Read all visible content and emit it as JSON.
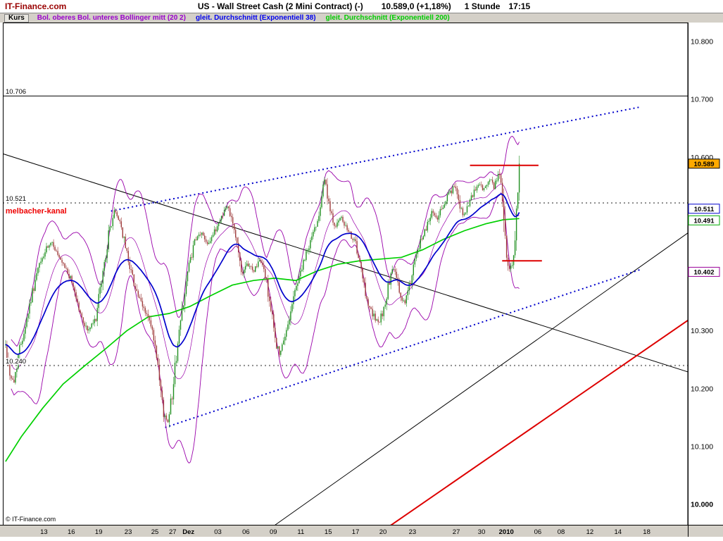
{
  "header": {
    "brand": "IT-Finance.com",
    "instrument": "US - Wall Street Cash (2 Mini Contract) (-)",
    "quote": "10.589,0 (+1,18%)",
    "timeframe": "1 Stunde",
    "time": "17:15"
  },
  "legend": {
    "kurs_label": "Kurs",
    "items": [
      {
        "key": "bollinger",
        "label": "Bol. oberes Bol. unteres Bollinger mitt (20 2)",
        "color": "#9900cc"
      },
      {
        "key": "ema38",
        "label": "gleit. Durchschnitt (Exponentiell 38)",
        "color": "#0000ee"
      },
      {
        "key": "ema200",
        "label": "gleit. Durchschnitt (Exponentiell 200)",
        "color": "#00cc00"
      }
    ]
  },
  "chart_data": {
    "type": "candlestick",
    "title": "US - Wall Street Cash (2 Mini Contract)",
    "timeframe": "1 Stunde",
    "last_price": 10.589,
    "change_pct": "+1,18%",
    "ylim": [
      9.96,
      10.835
    ],
    "grid": false,
    "copyright": "© IT-Finance.com",
    "indicators": {
      "bollinger_period": 20,
      "bollinger_dev": 2,
      "ema_periods": [
        38,
        200
      ]
    },
    "series_colors": {
      "up": "#1f8f1f",
      "down": "#9e3a3a",
      "bollinger": "#9900aa",
      "ema38": "#0000cc",
      "ema200": "#00d000"
    },
    "y_axis_labels": [
      {
        "t": "10.800",
        "p": 10.8
      },
      {
        "t": "10.700",
        "p": 10.7
      },
      {
        "t": "10.600",
        "p": 10.6
      },
      {
        "t": "10.300",
        "p": 10.3
      },
      {
        "t": "10.200",
        "p": 10.2
      },
      {
        "t": "10.100",
        "p": 10.1
      },
      {
        "t": "10.000",
        "p": 10.0,
        "b": true
      }
    ],
    "axis_markers": [
      {
        "t": "10.589",
        "p": 10.589,
        "bg": "#ffaa00",
        "border": "#000000"
      },
      {
        "t": "10.511",
        "p": 10.511,
        "bg": "#ffffff",
        "border": "#0000cc"
      },
      {
        "t": "10.491",
        "p": 10.491,
        "bg": "#ffffff",
        "border": "#00aa00"
      },
      {
        "t": "10.402",
        "p": 10.402,
        "bg": "#ffffff",
        "border": "#990099"
      }
    ],
    "x_axis_labels": [
      {
        "t": "13",
        "u": 0.06
      },
      {
        "t": "16",
        "u": 0.1
      },
      {
        "t": "19",
        "u": 0.14
      },
      {
        "t": "23",
        "u": 0.183
      },
      {
        "t": "25",
        "u": 0.222
      },
      {
        "t": "27",
        "u": 0.248
      },
      {
        "t": "Dez",
        "u": 0.271,
        "b": true
      },
      {
        "t": "03",
        "u": 0.314
      },
      {
        "t": "06",
        "u": 0.355
      },
      {
        "t": "09",
        "u": 0.395
      },
      {
        "t": "11",
        "u": 0.435
      },
      {
        "t": "15",
        "u": 0.475
      },
      {
        "t": "17",
        "u": 0.515
      },
      {
        "t": "20",
        "u": 0.555
      },
      {
        "t": "23",
        "u": 0.598
      },
      {
        "t": "27",
        "u": 0.662
      },
      {
        "t": "30",
        "u": 0.699
      },
      {
        "t": "2010",
        "u": 0.735,
        "b": true
      },
      {
        "t": "06",
        "u": 0.781
      },
      {
        "t": "08",
        "u": 0.815
      },
      {
        "t": "12",
        "u": 0.857
      },
      {
        "t": "14",
        "u": 0.898
      },
      {
        "t": "18",
        "u": 0.94
      }
    ],
    "levels": [
      {
        "p": 10.706,
        "style": "solid",
        "color": "#000000",
        "w": 1,
        "label": "10.706"
      },
      {
        "p": 10.521,
        "style": "dot",
        "color": "#8c8c8c",
        "w": 2,
        "label": "10.521"
      },
      {
        "p": 10.24,
        "style": "dot",
        "color": "#8c8c8c",
        "w": 2,
        "label": "10.240"
      }
    ],
    "trend_lines": [
      {
        "name": "descending-trendline",
        "u1": 0,
        "p1": 10.606,
        "u2": 1,
        "p2": 10.229,
        "color": "#000000",
        "w": 1,
        "style": "solid"
      },
      {
        "name": "ascending-trendline",
        "u1": 0.397,
        "p1": 9.964,
        "u2": 1,
        "p2": 10.469,
        "color": "#000000",
        "w": 1,
        "style": "solid"
      },
      {
        "name": "ascending-red-trendline",
        "u1": 0.563,
        "p1": 9.961,
        "u2": 1,
        "p2": 10.318,
        "color": "#dd0000",
        "w": 2,
        "style": "solid"
      },
      {
        "name": "kanal-upper-dotted",
        "u1": 0.158,
        "p1": 10.507,
        "u2": 0.931,
        "p2": 10.687,
        "color": "#0000cc",
        "w": 2,
        "style": "dot"
      },
      {
        "name": "kanal-lower-dotted",
        "u1": 0.237,
        "p1": 10.133,
        "u2": 0.931,
        "p2": 10.406,
        "color": "#0000cc",
        "w": 2,
        "style": "dot"
      }
    ],
    "segments": [
      {
        "name": "resistance-segment",
        "u1": 0.682,
        "p1": 10.586,
        "u2": 0.782,
        "p2": 10.586,
        "color": "#dd0000",
        "w": 2
      },
      {
        "name": "support-segment",
        "u1": 0.729,
        "p1": 10.421,
        "u2": 0.787,
        "p2": 10.421,
        "color": "#dd0000",
        "w": 2
      }
    ],
    "annotation": {
      "text": "melbacher-kanal",
      "color": "#ee0000",
      "u": 0.004,
      "p": 10.503
    },
    "candle_span": [
      0.004,
      0.754
    ],
    "candle_count": 365,
    "close_path": [
      [
        0.004,
        10.275
      ],
      [
        0.01,
        10.227
      ],
      [
        0.016,
        10.208
      ],
      [
        0.023,
        10.263
      ],
      [
        0.031,
        10.3
      ],
      [
        0.042,
        10.361
      ],
      [
        0.052,
        10.409
      ],
      [
        0.063,
        10.44
      ],
      [
        0.073,
        10.452
      ],
      [
        0.083,
        10.421
      ],
      [
        0.094,
        10.403
      ],
      [
        0.104,
        10.373
      ],
      [
        0.114,
        10.324
      ],
      [
        0.124,
        10.3
      ],
      [
        0.135,
        10.318
      ],
      [
        0.145,
        10.391
      ],
      [
        0.155,
        10.47
      ],
      [
        0.163,
        10.507
      ],
      [
        0.171,
        10.489
      ],
      [
        0.181,
        10.434
      ],
      [
        0.191,
        10.385
      ],
      [
        0.201,
        10.348
      ],
      [
        0.212,
        10.324
      ],
      [
        0.22,
        10.288
      ],
      [
        0.227,
        10.227
      ],
      [
        0.234,
        10.16
      ],
      [
        0.24,
        10.142
      ],
      [
        0.247,
        10.19
      ],
      [
        0.255,
        10.275
      ],
      [
        0.263,
        10.348
      ],
      [
        0.271,
        10.409
      ],
      [
        0.28,
        10.452
      ],
      [
        0.289,
        10.47
      ],
      [
        0.299,
        10.452
      ],
      [
        0.309,
        10.47
      ],
      [
        0.32,
        10.501
      ],
      [
        0.328,
        10.516
      ],
      [
        0.335,
        10.494
      ],
      [
        0.343,
        10.44
      ],
      [
        0.35,
        10.397
      ],
      [
        0.358,
        10.415
      ],
      [
        0.366,
        10.403
      ],
      [
        0.374,
        10.421
      ],
      [
        0.381,
        10.409
      ],
      [
        0.39,
        10.348
      ],
      [
        0.397,
        10.288
      ],
      [
        0.404,
        10.257
      ],
      [
        0.412,
        10.288
      ],
      [
        0.42,
        10.336
      ],
      [
        0.43,
        10.385
      ],
      [
        0.44,
        10.421
      ],
      [
        0.45,
        10.458
      ],
      [
        0.46,
        10.494
      ],
      [
        0.469,
        10.568
      ],
      [
        0.477,
        10.507
      ],
      [
        0.485,
        10.482
      ],
      [
        0.494,
        10.494
      ],
      [
        0.504,
        10.47
      ],
      [
        0.513,
        10.458
      ],
      [
        0.522,
        10.409
      ],
      [
        0.53,
        10.361
      ],
      [
        0.539,
        10.33
      ],
      [
        0.548,
        10.312
      ],
      [
        0.556,
        10.336
      ],
      [
        0.564,
        10.385
      ],
      [
        0.571,
        10.409
      ],
      [
        0.58,
        10.361
      ],
      [
        0.587,
        10.348
      ],
      [
        0.595,
        10.385
      ],
      [
        0.602,
        10.421
      ],
      [
        0.611,
        10.458
      ],
      [
        0.619,
        10.482
      ],
      [
        0.627,
        10.507
      ],
      [
        0.635,
        10.494
      ],
      [
        0.643,
        10.519
      ],
      [
        0.652,
        10.537
      ],
      [
        0.659,
        10.549
      ],
      [
        0.666,
        10.525
      ],
      [
        0.672,
        10.494
      ],
      [
        0.679,
        10.513
      ],
      [
        0.687,
        10.537
      ],
      [
        0.695,
        10.555
      ],
      [
        0.703,
        10.543
      ],
      [
        0.71,
        10.561
      ],
      [
        0.717,
        10.549
      ],
      [
        0.724,
        10.572
      ],
      [
        0.73,
        10.53
      ],
      [
        0.735,
        10.421
      ],
      [
        0.74,
        10.403
      ],
      [
        0.745,
        10.415
      ],
      [
        0.75,
        10.507
      ],
      [
        0.754,
        10.589
      ]
    ],
    "ema200_path": [
      [
        0.004,
        10.074
      ],
      [
        0.027,
        10.117
      ],
      [
        0.058,
        10.166
      ],
      [
        0.088,
        10.208
      ],
      [
        0.119,
        10.239
      ],
      [
        0.15,
        10.269
      ],
      [
        0.181,
        10.3
      ],
      [
        0.212,
        10.324
      ],
      [
        0.243,
        10.33
      ],
      [
        0.273,
        10.342
      ],
      [
        0.304,
        10.361
      ],
      [
        0.335,
        10.379
      ],
      [
        0.366,
        10.387
      ],
      [
        0.397,
        10.391
      ],
      [
        0.428,
        10.387
      ],
      [
        0.458,
        10.403
      ],
      [
        0.489,
        10.415
      ],
      [
        0.52,
        10.421
      ],
      [
        0.551,
        10.424
      ],
      [
        0.582,
        10.427
      ],
      [
        0.613,
        10.44
      ],
      [
        0.643,
        10.458
      ],
      [
        0.674,
        10.473
      ],
      [
        0.705,
        10.485
      ],
      [
        0.731,
        10.492
      ],
      [
        0.754,
        10.494
      ]
    ]
  }
}
